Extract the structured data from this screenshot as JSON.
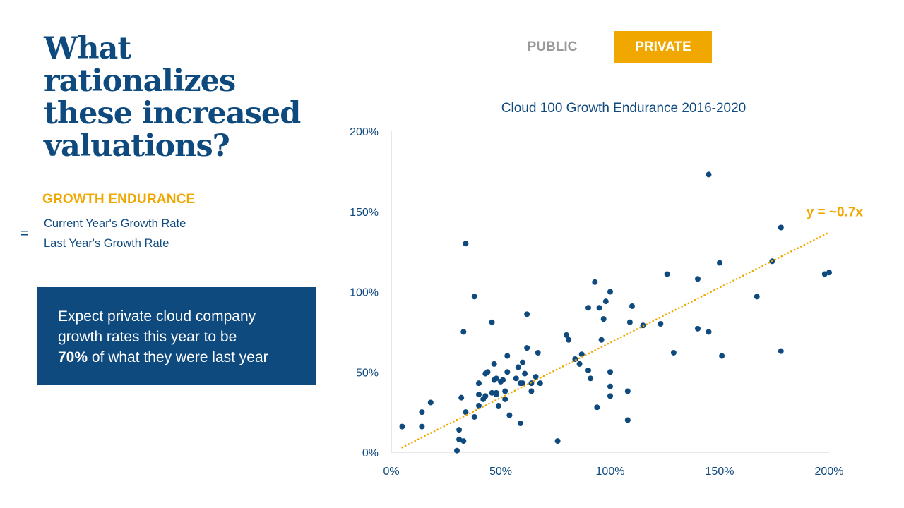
{
  "headline": "What rationalizes these increased valuations?",
  "formula": {
    "label": "GROWTH ENDURANCE",
    "equals": "=",
    "numerator": "Current Year's Growth Rate",
    "denominator": "Last Year's Growth Rate"
  },
  "callout": {
    "line1": "Expect private cloud company",
    "line2": "growth rates this year to be",
    "bold": "70%",
    "rest": " of what they were last year"
  },
  "toggle": {
    "public_label": "PUBLIC",
    "private_label": "PRIVATE",
    "selected": "PRIVATE"
  },
  "colors": {
    "navy": "#0f4a7f",
    "gold": "#f0a800",
    "gray": "#9a9a9a"
  },
  "chart_data": {
    "type": "scatter",
    "title": "Cloud 100 Growth Endurance 2016-2020",
    "xlabel": "",
    "ylabel": "",
    "xlim": [
      0,
      200
    ],
    "ylim": [
      0,
      200
    ],
    "x_ticks": [
      0,
      50,
      100,
      150,
      200
    ],
    "y_ticks": [
      0,
      50,
      100,
      150,
      200
    ],
    "x_tick_labels": [
      "0%",
      "50%",
      "100%",
      "150%",
      "200%"
    ],
    "y_tick_labels": [
      "0%",
      "50%",
      "100%",
      "150%",
      "200%"
    ],
    "grid": false,
    "legend": "none",
    "trendline": {
      "label": "y = ~0.7x",
      "from": [
        5,
        3
      ],
      "to": [
        200,
        137
      ],
      "style": "dotted"
    },
    "series": [
      {
        "name": "Private cloud companies",
        "points": [
          [
            5,
            16
          ],
          [
            14,
            16
          ],
          [
            14,
            25
          ],
          [
            18,
            31
          ],
          [
            30,
            1
          ],
          [
            31,
            14
          ],
          [
            31,
            8
          ],
          [
            33,
            7
          ],
          [
            32,
            34
          ],
          [
            34,
            25
          ],
          [
            33,
            75
          ],
          [
            34,
            130
          ],
          [
            38,
            22
          ],
          [
            38,
            97
          ],
          [
            40,
            29
          ],
          [
            40,
            36
          ],
          [
            40,
            43
          ],
          [
            42,
            33
          ],
          [
            43,
            35
          ],
          [
            43,
            49
          ],
          [
            44,
            50
          ],
          [
            46,
            37
          ],
          [
            46,
            81
          ],
          [
            47,
            55
          ],
          [
            47,
            45
          ],
          [
            48,
            37
          ],
          [
            48,
            36
          ],
          [
            48,
            46
          ],
          [
            49,
            29
          ],
          [
            50,
            44
          ],
          [
            51,
            45
          ],
          [
            52,
            38
          ],
          [
            52,
            33
          ],
          [
            53,
            50
          ],
          [
            53,
            60
          ],
          [
            54,
            23
          ],
          [
            57,
            46
          ],
          [
            58,
            53
          ],
          [
            59,
            43
          ],
          [
            60,
            43
          ],
          [
            59,
            18
          ],
          [
            60,
            56
          ],
          [
            61,
            49
          ],
          [
            62,
            86
          ],
          [
            62,
            65
          ],
          [
            64,
            38
          ],
          [
            64,
            43
          ],
          [
            66,
            47
          ],
          [
            67,
            62
          ],
          [
            68,
            43
          ],
          [
            76,
            7
          ],
          [
            80,
            73
          ],
          [
            81,
            70
          ],
          [
            84,
            58
          ],
          [
            86,
            55
          ],
          [
            87,
            61
          ],
          [
            90,
            51
          ],
          [
            90,
            90
          ],
          [
            91,
            46
          ],
          [
            93,
            106
          ],
          [
            94,
            28
          ],
          [
            95,
            90
          ],
          [
            96,
            70
          ],
          [
            97,
            83
          ],
          [
            98,
            94
          ],
          [
            100,
            100
          ],
          [
            100,
            50
          ],
          [
            100,
            41
          ],
          [
            100,
            35
          ],
          [
            108,
            20
          ],
          [
            108,
            38
          ],
          [
            109,
            81
          ],
          [
            110,
            91
          ],
          [
            115,
            79
          ],
          [
            123,
            80
          ],
          [
            126,
            111
          ],
          [
            129,
            62
          ],
          [
            140,
            108
          ],
          [
            140,
            77
          ],
          [
            145,
            173
          ],
          [
            145,
            75
          ],
          [
            150,
            118
          ],
          [
            151,
            60
          ],
          [
            167,
            97
          ],
          [
            174,
            119
          ],
          [
            178,
            140
          ],
          [
            178,
            63
          ],
          [
            198,
            111
          ],
          [
            200,
            112
          ]
        ]
      }
    ]
  }
}
